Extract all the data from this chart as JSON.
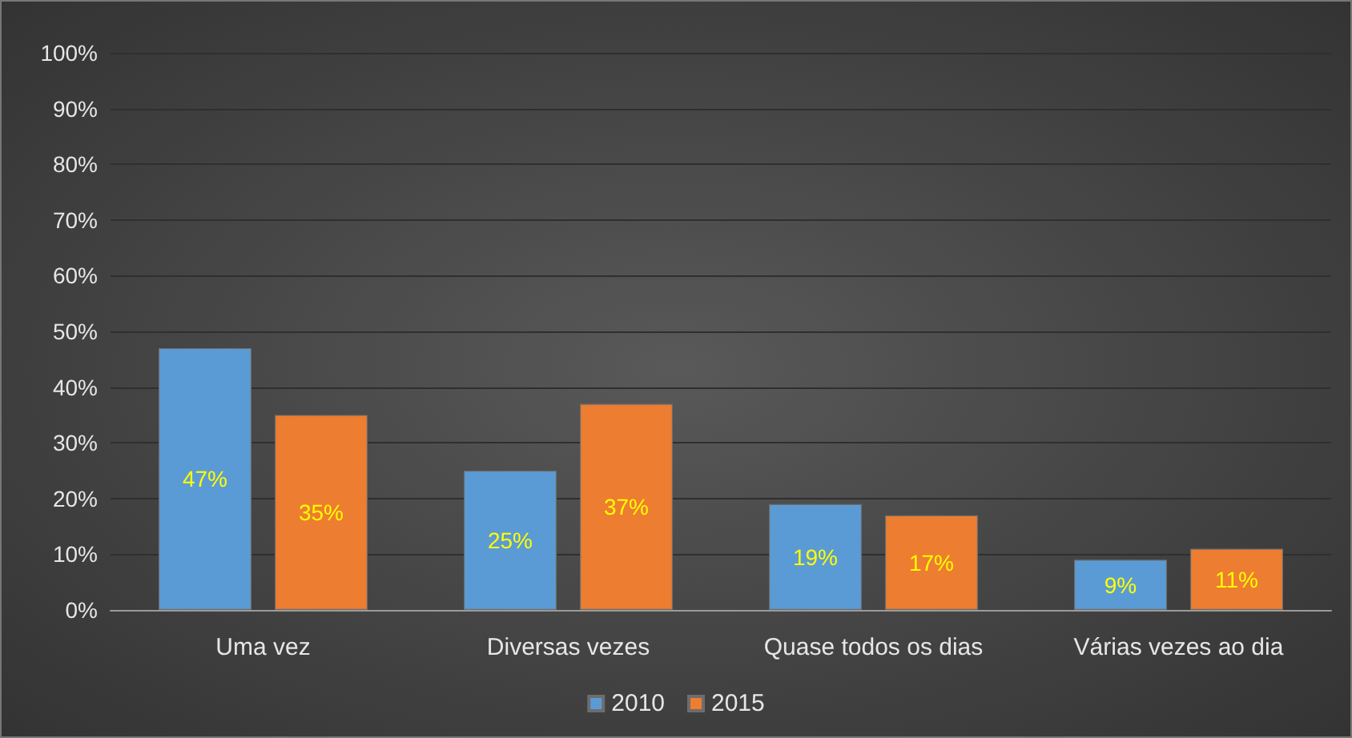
{
  "chart_data": {
    "type": "bar",
    "categories": [
      "Uma vez",
      "Diversas vezes",
      "Quase todos os dias",
      "Várias vezes ao dia"
    ],
    "series": [
      {
        "name": "2010",
        "color": "#5b9bd5",
        "values": [
          47,
          25,
          19,
          9
        ],
        "value_labels": [
          "47%",
          "25%",
          "19%",
          "9%"
        ]
      },
      {
        "name": "2015",
        "color": "#ed7d31",
        "values": [
          35,
          37,
          17,
          11
        ],
        "value_labels": [
          "35%",
          "37%",
          "17%",
          "11%"
        ]
      }
    ],
    "ylim": [
      0,
      100
    ],
    "yticks": [
      {
        "value": 0,
        "label": "0%"
      },
      {
        "value": 10,
        "label": "10%"
      },
      {
        "value": 20,
        "label": "20%"
      },
      {
        "value": 30,
        "label": "30%"
      },
      {
        "value": 40,
        "label": "40%"
      },
      {
        "value": 50,
        "label": "50%"
      },
      {
        "value": 60,
        "label": "60%"
      },
      {
        "value": 70,
        "label": "70%"
      },
      {
        "value": 80,
        "label": "80%"
      },
      {
        "value": 90,
        "label": "90%"
      },
      {
        "value": 100,
        "label": "100%"
      }
    ],
    "grid": "y",
    "legend": "bottom"
  }
}
